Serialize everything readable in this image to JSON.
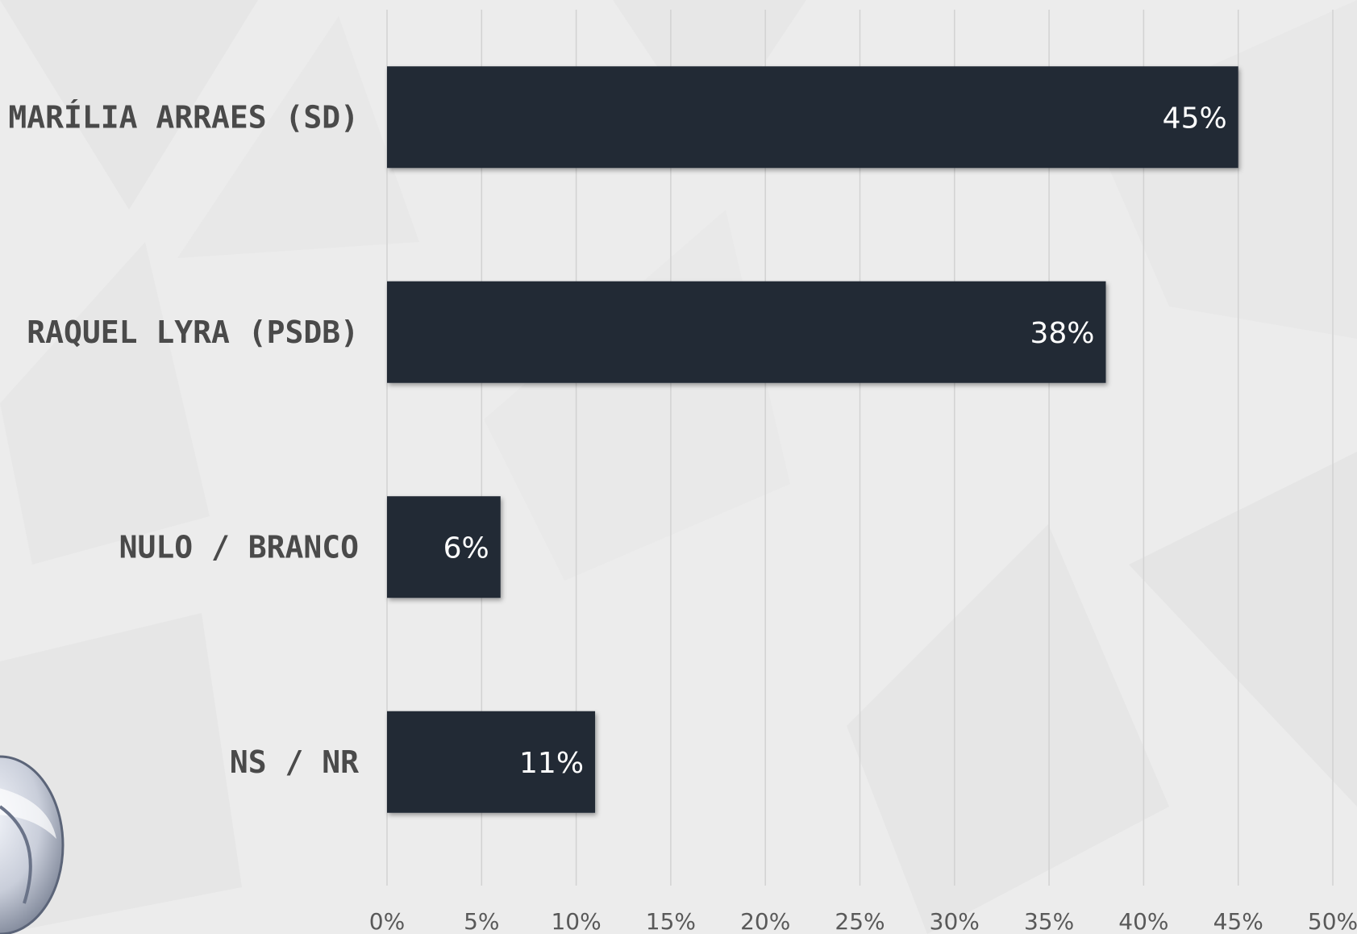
{
  "chart_data": {
    "type": "bar",
    "orientation": "horizontal",
    "categories": [
      "MARÍLIA ARRAES (SD)",
      "RAQUEL LYRA (PSDB)",
      "NULO / BRANCO",
      "NS / NR"
    ],
    "values": [
      45,
      38,
      6,
      11
    ],
    "value_labels": [
      "45%",
      "38%",
      "6%",
      "11%"
    ],
    "x_ticks": [
      "0%",
      "5%",
      "10%",
      "15%",
      "20%",
      "25%",
      "30%",
      "35%",
      "40%",
      "45%",
      "50%"
    ],
    "xlim": [
      0,
      50
    ],
    "grid": true,
    "bar_color": "#242a36",
    "title": "",
    "xlabel": "",
    "ylabel": ""
  },
  "logo": {
    "icon": "broadcaster-logo-icon"
  }
}
